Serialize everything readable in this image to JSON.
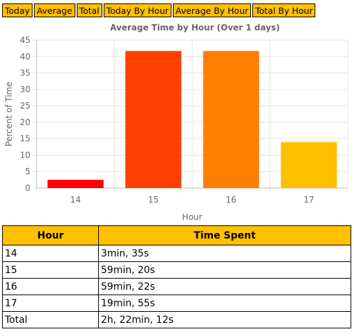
{
  "tabs": [
    "Today",
    "Average",
    "Total",
    "Today By Hour",
    "Average By Hour",
    "Total By Hour"
  ],
  "colors": {
    "tab_bg": "#ffc000",
    "table_header_bg": "#ffc000",
    "bar_colors": [
      "#ff0000",
      "#ff4000",
      "#ff8000",
      "#ffc000"
    ]
  },
  "chart_data": {
    "type": "bar",
    "title": "Average Time by Hour (Over 1 days)",
    "xlabel": "Hour",
    "ylabel": "Percent of Time",
    "categories": [
      "14",
      "15",
      "16",
      "17"
    ],
    "values": [
      2.5,
      41.7,
      41.7,
      14.0
    ],
    "ylim": [
      0,
      45
    ],
    "yticks": [
      0,
      5,
      10,
      15,
      20,
      25,
      30,
      35,
      40,
      45
    ],
    "grid": true,
    "legend": "none"
  },
  "table": {
    "headers": [
      "Hour",
      "Time Spent"
    ],
    "rows": [
      [
        "14",
        "3min, 35s"
      ],
      [
        "15",
        "59min, 20s"
      ],
      [
        "16",
        "59min, 22s"
      ],
      [
        "17",
        "19min, 55s"
      ],
      [
        "Total",
        "2h, 22min, 12s"
      ]
    ]
  }
}
